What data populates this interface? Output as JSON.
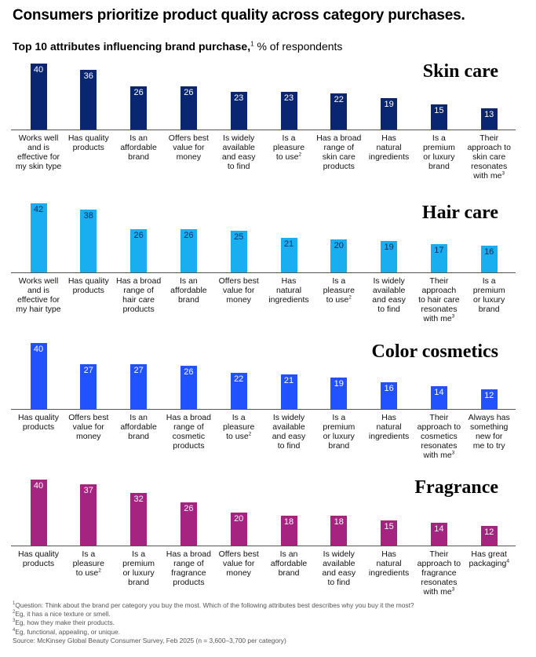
{
  "title": "Consumers prioritize product quality across category purchases.",
  "subtitle": {
    "bold": "Top 10 attributes influencing brand purchase,",
    "sup": "1",
    "rest": " % of respondents"
  },
  "chart_data": [
    {
      "type": "bar",
      "title": "Skin care",
      "color": "#0b2670",
      "categories": [
        [
          "Works well",
          "and is",
          "effective for",
          "my skin type"
        ],
        [
          "Has quality",
          "products"
        ],
        [
          "Is an",
          "affordable",
          "brand"
        ],
        [
          "Offers best",
          "value for",
          "money"
        ],
        [
          "Is widely",
          "available",
          "and easy",
          "to find"
        ],
        [
          "Is a",
          "pleasure",
          "to use^2"
        ],
        [
          "Has a broad",
          "range of",
          "skin care",
          "products"
        ],
        [
          "Has",
          "natural",
          "ingredients"
        ],
        [
          "Is a",
          "premium",
          "or luxury",
          "brand"
        ],
        [
          "Their",
          "approach to",
          "skin care",
          "resonates",
          "with me^3"
        ]
      ],
      "values": [
        40,
        36,
        26,
        26,
        23,
        23,
        22,
        19,
        15,
        13
      ],
      "ylim": [
        0,
        42
      ]
    },
    {
      "type": "bar",
      "title": "Hair care",
      "color": "#18aef0",
      "categories": [
        [
          "Works well",
          "and is",
          "effective for",
          "my hair type"
        ],
        [
          "Has quality",
          "products"
        ],
        [
          "Has a broad",
          "range of",
          "hair care",
          "products"
        ],
        [
          "Is an",
          "affordable",
          "brand"
        ],
        [
          "Offers best",
          "value for",
          "money"
        ],
        [
          "Has",
          "natural",
          "ingredients"
        ],
        [
          "Is a",
          "pleasure",
          "to use^2"
        ],
        [
          "Is widely",
          "available",
          "and easy",
          "to find"
        ],
        [
          "Their",
          "approach",
          "to hair care",
          "resonates",
          "with me^3"
        ],
        [
          "Is a",
          "premium",
          "or luxury",
          "brand"
        ]
      ],
      "values": [
        42,
        38,
        26,
        26,
        25,
        21,
        20,
        19,
        17,
        16
      ],
      "ylim": [
        0,
        42
      ]
    },
    {
      "type": "bar",
      "title": "Color cosmetics",
      "color": "#2251ff",
      "categories": [
        [
          "Has quality",
          "products"
        ],
        [
          "Offers best",
          "value for",
          "money"
        ],
        [
          "Is an",
          "affordable",
          "brand"
        ],
        [
          "Has a broad",
          "range of",
          "cosmetic",
          "products"
        ],
        [
          "Is a",
          "pleasure",
          "to use^2"
        ],
        [
          "Is widely",
          "available",
          "and easy",
          "to find"
        ],
        [
          "Is a",
          "premium",
          "or luxury",
          "brand"
        ],
        [
          "Has",
          "natural",
          "ingredients"
        ],
        [
          "Their",
          "approach to",
          "cosmetics",
          "resonates",
          "with me^3"
        ],
        [
          "Always has",
          "something",
          "new for",
          "me to try"
        ]
      ],
      "values": [
        40,
        27,
        27,
        26,
        22,
        21,
        19,
        16,
        14,
        12
      ],
      "ylim": [
        0,
        42
      ]
    },
    {
      "type": "bar",
      "title": "Fragrance",
      "color": "#a4247f",
      "categories": [
        [
          "Has quality",
          "products"
        ],
        [
          "Is a",
          "pleasure",
          "to use^2"
        ],
        [
          "Is a",
          "premium",
          "or luxury",
          "brand"
        ],
        [
          "Has a broad",
          "range of",
          "fragrance",
          "products"
        ],
        [
          "Offers best",
          "value for",
          "money"
        ],
        [
          "Is an",
          "affordable",
          "brand"
        ],
        [
          "Is widely",
          "available",
          "and easy",
          "to find"
        ],
        [
          "Has",
          "natural",
          "ingredients"
        ],
        [
          "Their",
          "approach to",
          "fragrance",
          "resonates",
          "with me^3"
        ],
        [
          "Has great",
          "packaging^4"
        ]
      ],
      "values": [
        40,
        37,
        32,
        26,
        20,
        18,
        18,
        15,
        14,
        12
      ],
      "ylim": [
        0,
        42
      ]
    }
  ],
  "footnotes": [
    {
      "sup": "1",
      "text": "Question: Think about the brand per category you buy the most. Which of the following attributes best describes why you buy it the most?"
    },
    {
      "sup": "2",
      "text": "Eg, it has a nice texture or smell."
    },
    {
      "sup": "3",
      "text": "Eg, how they make their products."
    },
    {
      "sup": "4",
      "text": "Eg, functional, appealing, or unique."
    },
    {
      "sup": "",
      "text": "Source: McKinsey Global Beauty Consumer Survey, Feb 2025 (n = 3,600–3,700 per category)"
    }
  ]
}
